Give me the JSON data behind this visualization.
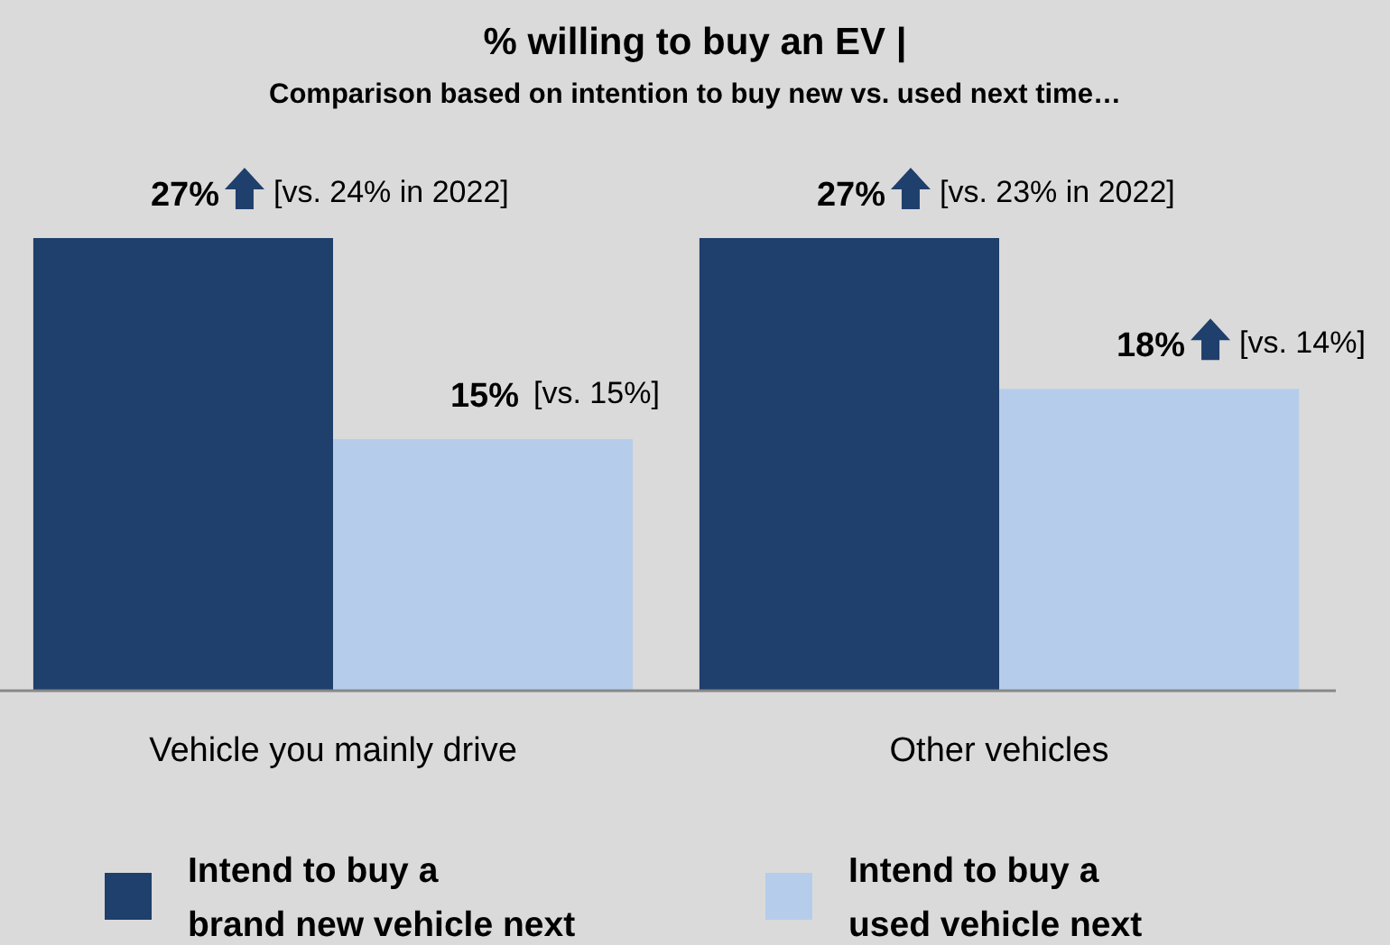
{
  "chart_data": {
    "type": "bar",
    "title": "% willing to buy an EV |",
    "subtitle": "Comparison based on intention to buy new vs. used next time…",
    "categories": [
      "Vehicle you mainly drive",
      "Other vehicles"
    ],
    "series": [
      {
        "name": "Intend to buy a brand new vehicle next",
        "color": "#1f3f6c",
        "values": [
          27,
          27
        ],
        "value_labels": [
          "27%",
          "27%"
        ]
      },
      {
        "name": "Intend to buy a used vehicle next",
        "color": "#b5cdea",
        "values": [
          15,
          18
        ],
        "value_labels": [
          "15%",
          "18%"
        ]
      }
    ],
    "annotations": [
      "[vs. 24% in 2022]",
      "[vs. 15%]",
      "[vs. 23% in 2022]",
      "[vs. 14%]"
    ],
    "legend": "bottom"
  }
}
